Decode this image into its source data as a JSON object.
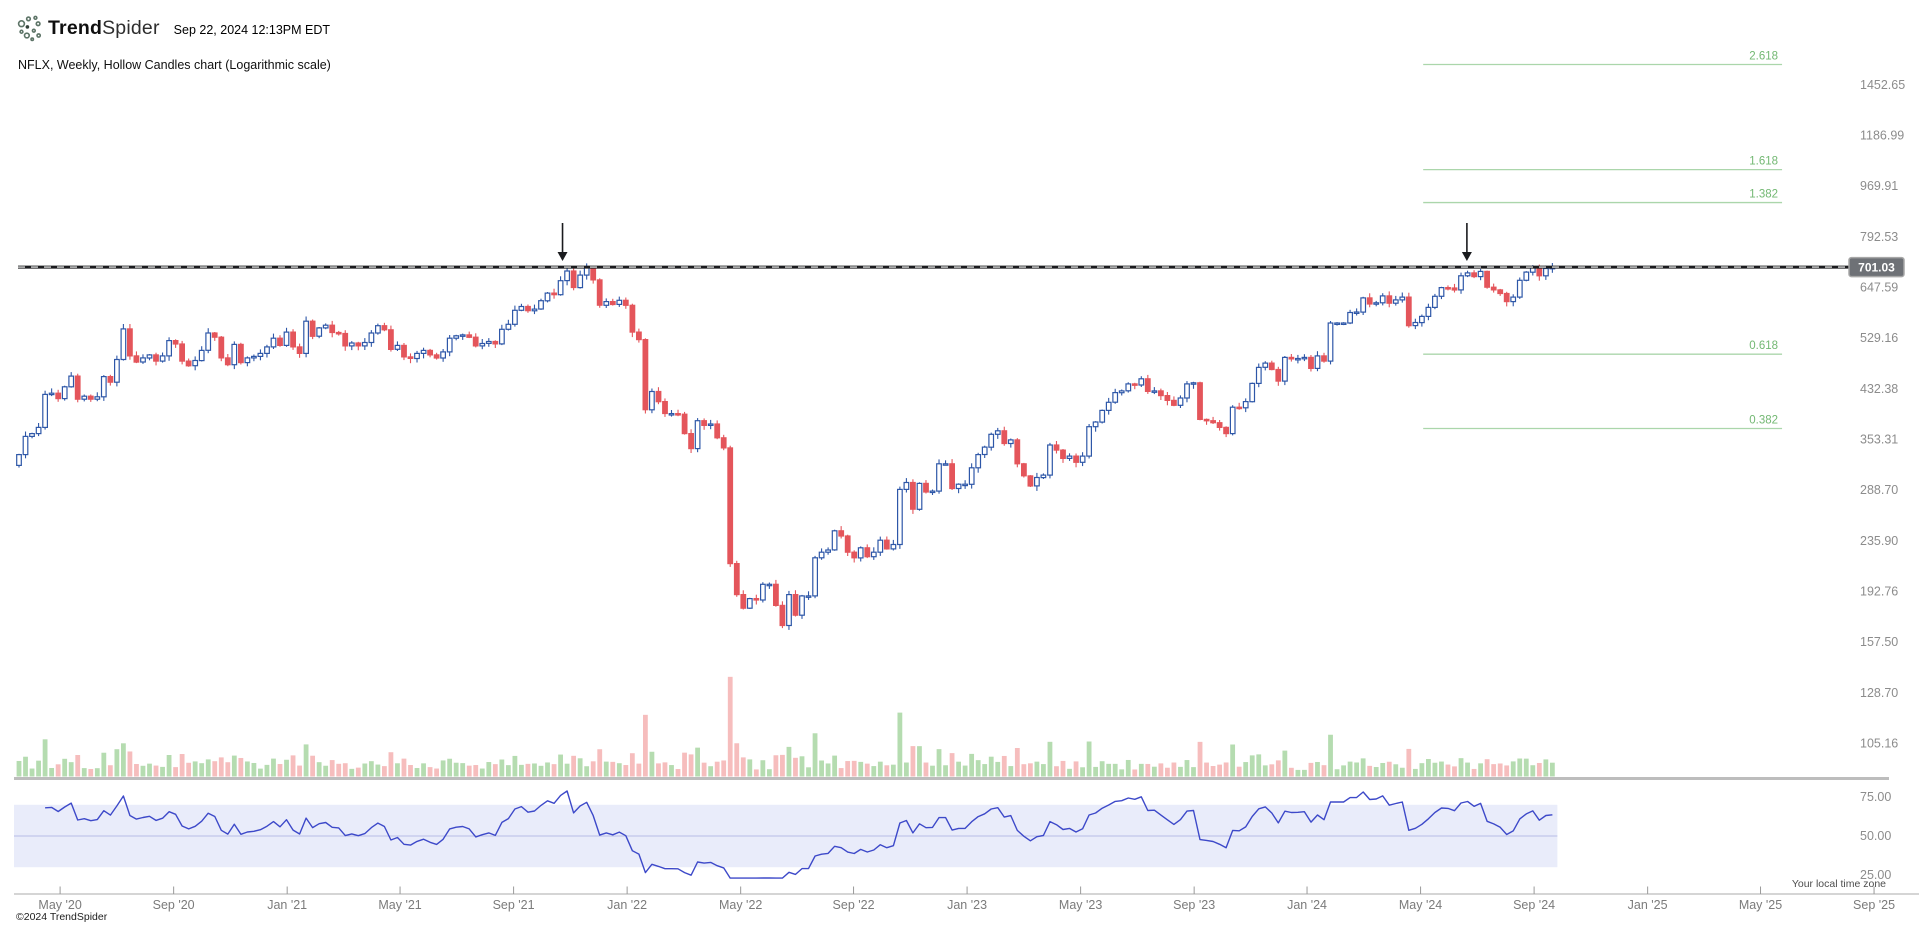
{
  "header": {
    "brand_bold": "Trend",
    "brand_light": "Spider",
    "timestamp": "Sep 22, 2024 12:13PM EDT",
    "subtitle": "NFLX, Weekly, Hollow Candles chart (Logarithmic scale)"
  },
  "footer": {
    "copyright": "©2024 TrendSpider",
    "timezone_note": "Your local time zone"
  },
  "colors": {
    "up": "#2e57a8",
    "down": "#e4555b",
    "vol_up": "#b5dcb0",
    "vol_down": "#f6bdbd",
    "fib_line": "#abd6ab",
    "fib_text": "#73b873",
    "rsi_line": "#3d49c9",
    "rsi_band": "#e9ecfa",
    "rsi_mid": "#b6bce6",
    "axis_text": "#8c8c8c",
    "badge_bg": "#6e7176"
  },
  "chart_data": {
    "type": "candlestick",
    "symbol": "NFLX",
    "timeframe": "Weekly",
    "style": "Hollow Candles",
    "scale": "Logarithmic",
    "title": "NFLX, Weekly, Hollow Candles chart (Logarithmic scale)",
    "price_axis_labels": [
      "1452.65",
      "1186.99",
      "969.91",
      "792.53",
      "647.59",
      "529.16",
      "432.38",
      "353.31",
      "288.70",
      "235.90",
      "192.76",
      "157.50",
      "128.70",
      "105.16"
    ],
    "ath_line": {
      "price": 701.03,
      "label": "701.03"
    },
    "arrows_weeks": [
      83.3,
      221.9
    ],
    "fib": {
      "from_week": 215.2,
      "to_week": 270.2,
      "swing_low": 162.83,
      "swing_high": 700.99,
      "levels": [
        {
          "ratio": "2.618",
          "price": 1571.8
        },
        {
          "ratio": "1.618",
          "price": 1033.6
        },
        {
          "ratio": "1.382",
          "price": 906.6
        },
        {
          "ratio": "0.618",
          "price": 495.4
        },
        {
          "ratio": "0.382",
          "price": 368.4
        }
      ]
    },
    "rsi": {
      "levels": [
        {
          "label": "75.00",
          "value": 75
        },
        {
          "label": "50.00",
          "value": 50
        },
        {
          "label": "25.00",
          "value": 25
        }
      ],
      "band": [
        30,
        70
      ]
    },
    "x_axis": {
      "ticks": [
        {
          "label": "May '20",
          "week": 6.3
        },
        {
          "label": "Sep '20",
          "week": 23.7
        },
        {
          "label": "Jan '21",
          "week": 41.1
        },
        {
          "label": "May '21",
          "week": 58.4
        },
        {
          "label": "Sep '21",
          "week": 75.8
        },
        {
          "label": "Jan '22",
          "week": 93.2
        },
        {
          "label": "May '22",
          "week": 110.6
        },
        {
          "label": "Sep '22",
          "week": 127.9
        },
        {
          "label": "Jan '23",
          "week": 145.3
        },
        {
          "label": "May '23",
          "week": 162.7
        },
        {
          "label": "Sep '23",
          "week": 180.1
        },
        {
          "label": "Jan '24",
          "week": 197.4
        },
        {
          "label": "May '24",
          "week": 214.8
        },
        {
          "label": "Sep '24",
          "week": 232.2
        },
        {
          "label": "Jan '25",
          "week": 249.6
        },
        {
          "label": "May '25",
          "week": 266.9
        },
        {
          "label": "Sep '25",
          "week": 284.3
        }
      ]
    },
    "series": {
      "first_open": 318,
      "weekly_closes": [
        332,
        357,
        361,
        370,
        422,
        424,
        415,
        435,
        454,
        414,
        419,
        414,
        418,
        453,
        443,
        485,
        548,
        492,
        480,
        488,
        494,
        482,
        492,
        523,
        516,
        482,
        473,
        483,
        503,
        539,
        530,
        488,
        475,
        515,
        479,
        488,
        491,
        497,
        510,
        528,
        513,
        541,
        510,
        497,
        565,
        532,
        550,
        556,
        540,
        538,
        512,
        518,
        512,
        519,
        539,
        555,
        546,
        505,
        513,
        490,
        487,
        497,
        503,
        494,
        488,
        500,
        528,
        533,
        535,
        530,
        512,
        517,
        521,
        516,
        547,
        558,
        590,
        599,
        589,
        593,
        613,
        632,
        628,
        664,
        690,
        646,
        679,
        699,
        666,
        602,
        611,
        604,
        614,
        602,
        541,
        525,
        397,
        427,
        410,
        391,
        391,
        390,
        361,
        340,
        380,
        373,
        375,
        355,
        341,
        215,
        190,
        180,
        187,
        186,
        198,
        198,
        182,
        168,
        190,
        175,
        189,
        189,
        220,
        225,
        227,
        245,
        240,
        225,
        220,
        229,
        221,
        225,
        236,
        228,
        232,
        289,
        297,
        267,
        296,
        286,
        287,
        320,
        320,
        290,
        295,
        295,
        315,
        332,
        342,
        360,
        365,
        347,
        352,
        320,
        305,
        293,
        303,
        306,
        345,
        338,
        327,
        330,
        322,
        330,
        371,
        378,
        396,
        409,
        425,
        428,
        440,
        438,
        449,
        427,
        428,
        420,
        412,
        404,
        416,
        440,
        442,
        382,
        380,
        377,
        370,
        361,
        401,
        400,
        410,
        441,
        470,
        478,
        466,
        445,
        489,
        486,
        487,
        489,
        468,
        492,
        482,
        561,
        561,
        561,
        585,
        586,
        620,
        605,
        608,
        625,
        607,
        615,
        622,
        555,
        562,
        576,
        597,
        624,
        646,
        645,
        640,
        677,
        685,
        675,
        689,
        647,
        640,
        631,
        611,
        622,
        665,
        687,
        701,
        677,
        697,
        700
      ]
    }
  }
}
